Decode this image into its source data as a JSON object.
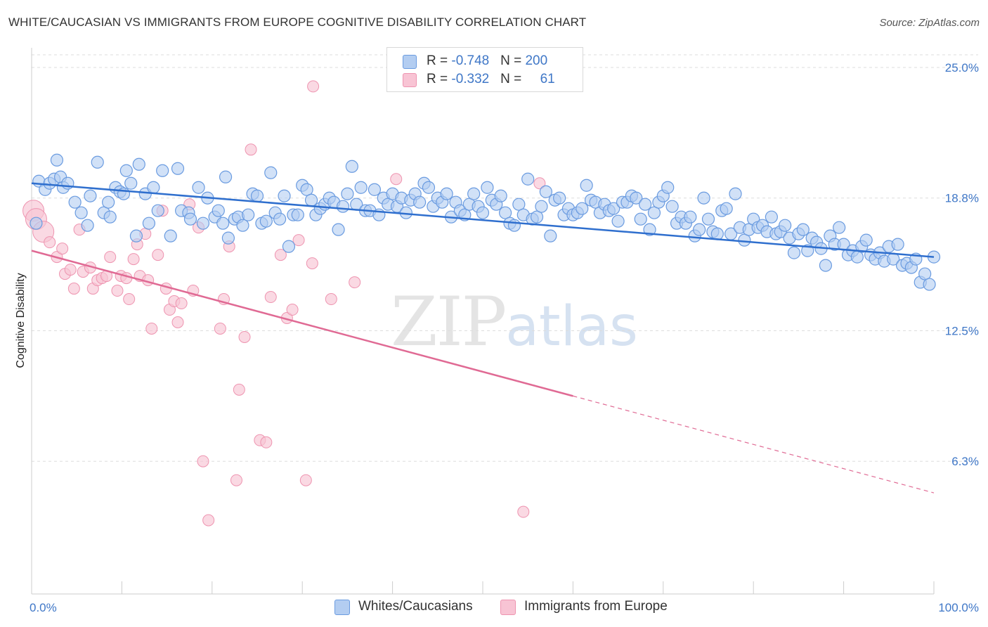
{
  "title": "WHITE/CAUCASIAN VS IMMIGRANTS FROM EUROPE COGNITIVE DISABILITY CORRELATION CHART",
  "source": "Source: ZipAtlas.com",
  "watermark": {
    "zip": "ZIP",
    "atlas": "atlas"
  },
  "legend": {
    "rows": [
      {
        "r_label": "R = ",
        "r_value": "-0.748",
        "n_label": "N = ",
        "n_value": "200"
      },
      {
        "r_label": "R = ",
        "r_value": "-0.332",
        "n_label": "N = ",
        "n_value": "61"
      }
    ]
  },
  "bottom_legend": {
    "series1": "Whites/Caucasians",
    "series2": "Immigrants from Europe"
  },
  "colors": {
    "blue_fill": "#b3cdf1",
    "blue_stroke": "#6a9be0",
    "blue_line": "#2f6fce",
    "pink_fill": "#f8c4d4",
    "pink_stroke": "#ee94b0",
    "pink_line": "#e06a94",
    "grid": "#dddddd",
    "tick_text": "#3f77c7"
  },
  "chart_data": {
    "type": "scatter",
    "title": "WHITE/CAUCASIAN VS IMMIGRANTS FROM EUROPE COGNITIVE DISABILITY CORRELATION CHART",
    "xlabel": "",
    "ylabel": "Cognitive Disability",
    "xlim": [
      0,
      100
    ],
    "ylim": [
      0,
      26.2
    ],
    "x_tick_labels": [
      "0.0%",
      "100.0%"
    ],
    "y_ticks": [
      6.3,
      12.5,
      18.8,
      25.0
    ],
    "y_tick_labels": [
      "6.3%",
      "12.5%",
      "18.8%",
      "25.0%"
    ],
    "grid": "horizontal dashed",
    "legend_position": "top-center",
    "series": [
      {
        "name": "Whites/Caucasians",
        "color": "#6a9be0",
        "R": -0.748,
        "N": 200,
        "trend": {
          "x": [
            0,
            100
          ],
          "y": [
            19.5,
            16.0
          ],
          "style": "solid"
        },
        "points": [
          [
            0.5,
            17.6
          ],
          [
            0.8,
            19.6
          ],
          [
            1.5,
            19.2
          ],
          [
            2.0,
            19.5
          ],
          [
            2.5,
            19.7
          ],
          [
            2.8,
            20.6
          ],
          [
            3.2,
            19.8
          ],
          [
            3.5,
            19.3
          ],
          [
            4.0,
            19.5
          ],
          [
            4.8,
            18.6
          ],
          [
            5.5,
            18.1
          ],
          [
            6.2,
            17.5
          ],
          [
            6.5,
            18.9
          ],
          [
            7.3,
            20.5
          ],
          [
            8.0,
            18.1
          ],
          [
            8.5,
            18.6
          ],
          [
            8.7,
            17.9
          ],
          [
            9.3,
            19.3
          ],
          [
            9.8,
            19.1
          ],
          [
            10.2,
            19.0
          ],
          [
            10.5,
            20.1
          ],
          [
            11.0,
            19.5
          ],
          [
            11.6,
            17.0
          ],
          [
            11.9,
            20.4
          ],
          [
            12.6,
            19.0
          ],
          [
            13.0,
            17.6
          ],
          [
            13.5,
            19.3
          ],
          [
            14.0,
            18.2
          ],
          [
            14.5,
            20.1
          ],
          [
            15.4,
            17.0
          ],
          [
            16.2,
            20.2
          ],
          [
            16.6,
            18.2
          ],
          [
            17.4,
            18.1
          ],
          [
            17.6,
            17.8
          ],
          [
            18.5,
            19.3
          ],
          [
            19.0,
            17.6
          ],
          [
            19.5,
            18.8
          ],
          [
            20.3,
            17.9
          ],
          [
            20.7,
            18.2
          ],
          [
            21.2,
            17.6
          ],
          [
            21.5,
            19.8
          ],
          [
            21.8,
            16.9
          ],
          [
            22.5,
            17.8
          ],
          [
            22.9,
            17.9
          ],
          [
            23.4,
            17.5
          ],
          [
            24.0,
            18.0
          ],
          [
            24.5,
            19.0
          ],
          [
            25.0,
            18.9
          ],
          [
            25.5,
            17.6
          ],
          [
            26.0,
            17.7
          ],
          [
            26.5,
            20.0
          ],
          [
            27.0,
            18.1
          ],
          [
            27.5,
            17.8
          ],
          [
            28.0,
            18.9
          ],
          [
            28.5,
            16.5
          ],
          [
            29.0,
            18.0
          ],
          [
            29.5,
            18.0
          ],
          [
            30.0,
            19.4
          ],
          [
            30.5,
            19.2
          ],
          [
            31.0,
            18.7
          ],
          [
            31.5,
            18.0
          ],
          [
            32.0,
            18.3
          ],
          [
            32.5,
            18.5
          ],
          [
            33.0,
            18.8
          ],
          [
            33.5,
            18.6
          ],
          [
            34.0,
            17.3
          ],
          [
            34.5,
            18.4
          ],
          [
            35.0,
            19.0
          ],
          [
            35.5,
            20.3
          ],
          [
            36.0,
            18.5
          ],
          [
            36.5,
            19.3
          ],
          [
            37.0,
            18.2
          ],
          [
            37.5,
            18.2
          ],
          [
            38.0,
            19.2
          ],
          [
            38.5,
            18.0
          ],
          [
            39.0,
            18.8
          ],
          [
            39.5,
            18.5
          ],
          [
            40.0,
            19.0
          ],
          [
            40.5,
            18.4
          ],
          [
            41.0,
            18.8
          ],
          [
            41.5,
            18.1
          ],
          [
            42.0,
            18.7
          ],
          [
            42.5,
            19.0
          ],
          [
            43.0,
            18.6
          ],
          [
            43.5,
            19.5
          ],
          [
            44.0,
            19.3
          ],
          [
            44.5,
            18.4
          ],
          [
            45.0,
            18.8
          ],
          [
            45.5,
            18.6
          ],
          [
            46.0,
            19.0
          ],
          [
            46.5,
            17.9
          ],
          [
            47.0,
            18.6
          ],
          [
            47.5,
            18.2
          ],
          [
            48.0,
            18.0
          ],
          [
            48.5,
            18.5
          ],
          [
            49.0,
            19.0
          ],
          [
            49.5,
            18.4
          ],
          [
            50.0,
            18.1
          ],
          [
            50.5,
            19.3
          ],
          [
            51.0,
            18.7
          ],
          [
            51.5,
            18.5
          ],
          [
            52.0,
            18.9
          ],
          [
            52.5,
            18.1
          ],
          [
            53.0,
            17.6
          ],
          [
            53.5,
            17.5
          ],
          [
            54.0,
            18.5
          ],
          [
            54.5,
            18.0
          ],
          [
            55.0,
            19.7
          ],
          [
            55.5,
            17.8
          ],
          [
            56.0,
            17.9
          ],
          [
            56.5,
            18.4
          ],
          [
            57.0,
            19.1
          ],
          [
            57.5,
            17.0
          ],
          [
            58.0,
            18.7
          ],
          [
            58.5,
            18.8
          ],
          [
            59.0,
            18.0
          ],
          [
            59.5,
            18.3
          ],
          [
            60.0,
            18.0
          ],
          [
            60.5,
            18.1
          ],
          [
            61.0,
            18.3
          ],
          [
            61.5,
            19.4
          ],
          [
            62.0,
            18.7
          ],
          [
            62.5,
            18.6
          ],
          [
            63.0,
            18.1
          ],
          [
            63.5,
            18.5
          ],
          [
            64.0,
            18.2
          ],
          [
            64.5,
            18.3
          ],
          [
            65.0,
            17.7
          ],
          [
            65.5,
            18.6
          ],
          [
            66.0,
            18.6
          ],
          [
            66.5,
            18.9
          ],
          [
            67.0,
            18.8
          ],
          [
            67.5,
            17.8
          ],
          [
            68.0,
            18.5
          ],
          [
            68.5,
            17.3
          ],
          [
            69.0,
            18.1
          ],
          [
            69.5,
            18.6
          ],
          [
            70.0,
            18.9
          ],
          [
            70.5,
            19.3
          ],
          [
            71.0,
            18.4
          ],
          [
            71.5,
            17.6
          ],
          [
            72.0,
            17.9
          ],
          [
            72.5,
            17.6
          ],
          [
            73.0,
            17.9
          ],
          [
            73.5,
            17.0
          ],
          [
            74.0,
            17.3
          ],
          [
            74.5,
            18.8
          ],
          [
            75.0,
            17.8
          ],
          [
            75.5,
            17.2
          ],
          [
            76.0,
            17.1
          ],
          [
            76.5,
            18.2
          ],
          [
            77.0,
            18.3
          ],
          [
            77.5,
            17.1
          ],
          [
            78.0,
            19.0
          ],
          [
            78.5,
            17.4
          ],
          [
            79.0,
            16.8
          ],
          [
            79.5,
            17.3
          ],
          [
            80.0,
            17.8
          ],
          [
            80.5,
            17.4
          ],
          [
            81.0,
            17.5
          ],
          [
            81.5,
            17.2
          ],
          [
            82.0,
            17.9
          ],
          [
            82.5,
            17.1
          ],
          [
            83.0,
            17.2
          ],
          [
            83.5,
            17.5
          ],
          [
            84.0,
            16.9
          ],
          [
            84.5,
            16.2
          ],
          [
            85.0,
            17.1
          ],
          [
            85.5,
            17.3
          ],
          [
            86.0,
            16.3
          ],
          [
            86.5,
            16.9
          ],
          [
            87.0,
            16.7
          ],
          [
            87.5,
            16.4
          ],
          [
            88.0,
            15.6
          ],
          [
            88.5,
            17.0
          ],
          [
            89.0,
            16.6
          ],
          [
            89.5,
            17.4
          ],
          [
            90.0,
            16.6
          ],
          [
            90.5,
            16.1
          ],
          [
            91.0,
            16.3
          ],
          [
            91.5,
            16.0
          ],
          [
            92.0,
            16.5
          ],
          [
            92.5,
            16.8
          ],
          [
            93.0,
            16.1
          ],
          [
            93.5,
            15.9
          ],
          [
            94.0,
            16.2
          ],
          [
            94.5,
            15.8
          ],
          [
            95.0,
            16.5
          ],
          [
            95.5,
            15.9
          ],
          [
            96.0,
            16.6
          ],
          [
            96.5,
            15.6
          ],
          [
            97.0,
            15.7
          ],
          [
            97.5,
            15.5
          ],
          [
            98.0,
            15.9
          ],
          [
            98.5,
            14.8
          ],
          [
            99.0,
            15.2
          ],
          [
            99.5,
            14.7
          ],
          [
            100.0,
            16.0
          ]
        ]
      },
      {
        "name": "Immigrants from Europe",
        "color": "#ee94b0",
        "R": -0.332,
        "N": 61,
        "trend": {
          "x": [
            0,
            60
          ],
          "y": [
            16.3,
            9.4
          ],
          "style": "solid",
          "dash_extension": {
            "x": [
              60,
              100
            ],
            "y": [
              9.4,
              4.8
            ]
          }
        },
        "points": [
          [
            0.2,
            18.2
          ],
          [
            0.5,
            17.8
          ],
          [
            1.3,
            17.2
          ],
          [
            2.0,
            16.7
          ],
          [
            2.8,
            16.0
          ],
          [
            3.4,
            16.4
          ],
          [
            3.7,
            15.2
          ],
          [
            4.3,
            15.4
          ],
          [
            4.7,
            14.5
          ],
          [
            5.3,
            17.3
          ],
          [
            5.7,
            15.3
          ],
          [
            6.5,
            15.5
          ],
          [
            6.8,
            14.5
          ],
          [
            7.3,
            14.9
          ],
          [
            7.8,
            15.0
          ],
          [
            8.3,
            15.1
          ],
          [
            8.7,
            16.0
          ],
          [
            9.5,
            14.4
          ],
          [
            9.9,
            15.1
          ],
          [
            10.5,
            15.0
          ],
          [
            10.8,
            14.0
          ],
          [
            11.3,
            15.9
          ],
          [
            11.7,
            16.6
          ],
          [
            12.0,
            15.1
          ],
          [
            12.6,
            17.1
          ],
          [
            12.9,
            14.9
          ],
          [
            13.3,
            12.6
          ],
          [
            14.0,
            16.1
          ],
          [
            14.5,
            18.2
          ],
          [
            14.9,
            14.5
          ],
          [
            15.3,
            13.5
          ],
          [
            15.8,
            13.9
          ],
          [
            16.2,
            12.9
          ],
          [
            16.6,
            13.8
          ],
          [
            17.5,
            18.5
          ],
          [
            17.9,
            14.4
          ],
          [
            18.5,
            17.4
          ],
          [
            19.0,
            6.3
          ],
          [
            19.6,
            3.5
          ],
          [
            20.9,
            12.6
          ],
          [
            21.3,
            14.0
          ],
          [
            21.9,
            16.5
          ],
          [
            22.7,
            5.4
          ],
          [
            23.0,
            9.7
          ],
          [
            23.6,
            12.2
          ],
          [
            24.3,
            21.1
          ],
          [
            25.3,
            7.3
          ],
          [
            26.0,
            7.2
          ],
          [
            26.5,
            14.1
          ],
          [
            27.6,
            16.1
          ],
          [
            28.3,
            13.1
          ],
          [
            28.9,
            13.5
          ],
          [
            29.6,
            16.8
          ],
          [
            30.4,
            5.4
          ],
          [
            31.1,
            15.7
          ],
          [
            31.2,
            24.1
          ],
          [
            33.2,
            14.0
          ],
          [
            35.8,
            14.8
          ],
          [
            40.4,
            19.7
          ],
          [
            54.5,
            3.9
          ],
          [
            56.3,
            19.5
          ]
        ]
      }
    ]
  }
}
